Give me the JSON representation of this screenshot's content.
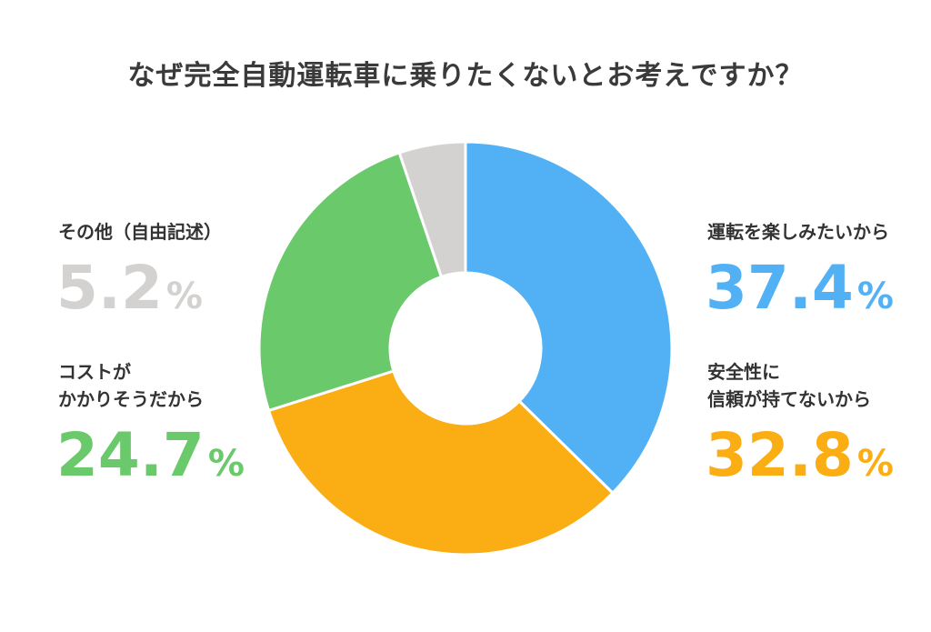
{
  "chart_data": {
    "type": "pie",
    "title": "なぜ完全自動運転車に乗りたくないとお考えですか？",
    "unit": "%",
    "slices": [
      {
        "name": "運転を楽しみたいから",
        "name_lines": [
          "運転を楽しみたいから"
        ],
        "value": 37.4,
        "color": "#52b1f5"
      },
      {
        "name": "安全性に信頼が持てないから",
        "name_lines": [
          "安全性に",
          "信頼が持てないから"
        ],
        "value": 32.8,
        "color": "#fbad14"
      },
      {
        "name": "コストがかかりそうだから",
        "name_lines": [
          "コストが",
          "かかりそうだから"
        ],
        "value": 24.7,
        "color": "#6ac96a"
      },
      {
        "name": "その他（自由記述）",
        "name_lines": [
          "その他（自由記述）"
        ],
        "value": 5.2,
        "color": "#d3d2d0"
      }
    ]
  }
}
